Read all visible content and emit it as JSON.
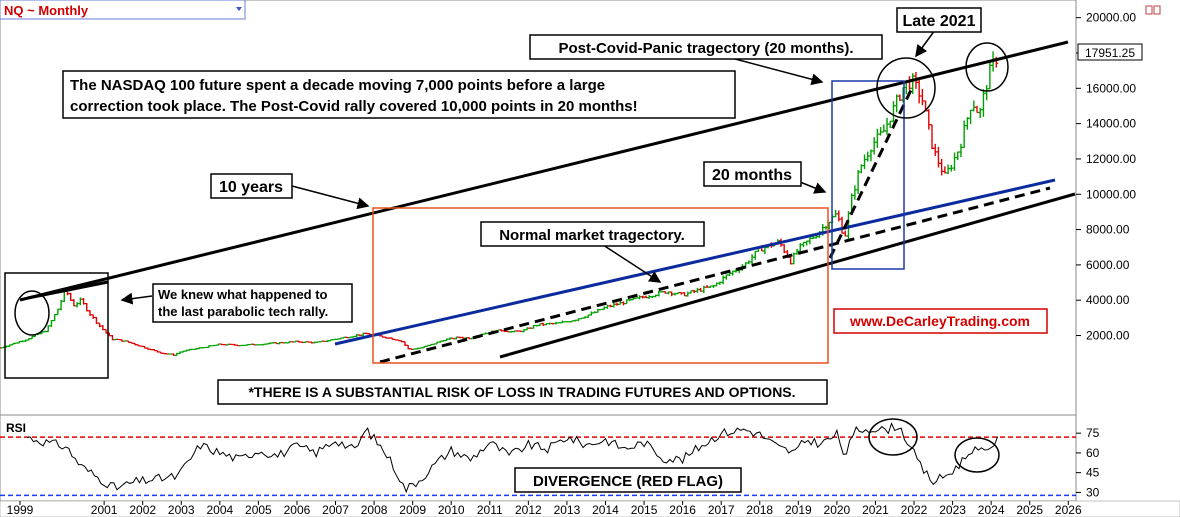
{
  "header": {
    "symbol_label": "NQ ~ Monthly"
  },
  "price_label": "17951.25",
  "rsi_label": "RSI",
  "annotations": {
    "late_2021": "Late 2021",
    "post_covid_tragectory": "Post-Covid-Panic tragectory (20 months).",
    "summary_line1": "The NASDAQ 100 future spent a decade moving 7,000 points before a large",
    "summary_line2": "correction took place. The Post-Covid rally covered 10,000 points in 20 months!",
    "ten_years": "10 years",
    "twenty_months": "20 months",
    "normal_tragectory": "Normal market tragectory.",
    "parabolic_line1": "We knew what happened to",
    "parabolic_line2": "the last parabolic tech rally.",
    "website": "www.DeCarleyTrading.com",
    "risk_disclaimer": "*THERE IS A SUBSTANTIAL RISK OF LOSS IN TRADING FUTURES AND OPTIONS.",
    "divergence": "DIVERGENCE (RED FLAG)"
  },
  "colors": {
    "up_bar": "#00a000",
    "down_bar": "#e00000",
    "channel": "#000000",
    "blue_trend": "#0a2a9e",
    "orange_box": "#e8501e",
    "blue_box": "#1a3aa8",
    "website_text": "#d40000",
    "overbought": "#e00000",
    "oversold": "#1a3aff"
  },
  "chart_data": [
    {
      "type": "line",
      "title": "NQ ~ Monthly",
      "x_unit": "year",
      "x_ticks": [
        "1999",
        "2001",
        "2002",
        "2003",
        "2004",
        "2005",
        "2006",
        "2007",
        "2008",
        "2009",
        "2010",
        "2011",
        "2012",
        "2013",
        "2014",
        "2015",
        "2016",
        "2017",
        "2018",
        "2019",
        "2020",
        "2021",
        "2022",
        "2023",
        "2024",
        "2025",
        "2026"
      ],
      "y_ticks": [
        2000,
        4000,
        6000,
        8000,
        10000,
        12000,
        14000,
        16000,
        18000,
        20000
      ],
      "y_tick_labels": [
        "2000.00",
        "4000.00",
        "6000.00",
        "8000.00",
        "10000.00",
        "12000.00",
        "14000.00",
        "16000.00",
        "18000.00",
        "20000.00"
      ],
      "ylim": [
        -2500,
        21000
      ],
      "xlim": [
        1998.3,
        2026.2
      ],
      "last_value": 17951.25,
      "series": [
        {
          "name": "NQ",
          "x": [
            1998.3,
            1999.0,
            1999.5,
            1999.8,
            2000.0,
            2000.2,
            2000.4,
            2000.6,
            2000.9,
            2001.2,
            2001.5,
            2001.8,
            2002.2,
            2002.5,
            2002.8,
            2003.0,
            2003.5,
            2004.0,
            2004.5,
            2005.0,
            2005.5,
            2006.0,
            2006.5,
            2007.0,
            2007.5,
            2007.8,
            2008.3,
            2008.7,
            2008.9,
            2009.2,
            2009.5,
            2009.8,
            2010.2,
            2010.5,
            2010.8,
            2011.3,
            2011.6,
            2011.9,
            2012.2,
            2012.5,
            2012.8,
            2013.2,
            2013.6,
            2014.0,
            2014.5,
            2015.0,
            2015.6,
            2016.0,
            2016.3,
            2016.8,
            2017.2,
            2017.6,
            2018.0,
            2018.5,
            2018.8,
            2019.0,
            2019.5,
            2019.8,
            2020.0,
            2020.2,
            2020.35,
            2020.6,
            2020.9,
            2021.2,
            2021.5,
            2021.75,
            2021.95,
            2022.2,
            2022.5,
            2022.8,
            2023.0,
            2023.2,
            2023.5,
            2023.7,
            2023.85,
            2024.0,
            2024.2
          ],
          "values": [
            1300,
            1800,
            2300,
            3500,
            4600,
            3700,
            4000,
            3300,
            2500,
            1800,
            1700,
            1500,
            1200,
            1000,
            900,
            1100,
            1300,
            1500,
            1450,
            1500,
            1580,
            1650,
            1600,
            1800,
            2000,
            2100,
            1900,
            1700,
            1200,
            1300,
            1500,
            1750,
            1900,
            1850,
            2100,
            2300,
            2200,
            2300,
            2600,
            2650,
            2700,
            2900,
            3200,
            3600,
            3900,
            4200,
            4500,
            4300,
            4500,
            4800,
            5500,
            6000,
            6900,
            7300,
            6200,
            6900,
            7800,
            8500,
            8900,
            7500,
            9500,
            11500,
            12800,
            13500,
            15000,
            16200,
            16400,
            15500,
            12500,
            11000,
            11800,
            12800,
            15300,
            14500,
            16000,
            17200,
            17951
          ]
        }
      ]
    },
    {
      "type": "line",
      "title": "RSI",
      "y_ticks": [
        30,
        45,
        60,
        75
      ],
      "ylim": [
        25,
        85
      ],
      "series": [
        {
          "name": "RSI",
          "x": [
            1999.0,
            1999.5,
            2000.0,
            2000.4,
            2000.8,
            2001.3,
            2001.8,
            2002.3,
            2002.9,
            2003.5,
            2004.0,
            2004.5,
            2005.0,
            2005.5,
            2006.0,
            2006.5,
            2007.0,
            2007.5,
            2007.8,
            2008.3,
            2008.6,
            2008.8,
            2009.2,
            2009.6,
            2010.0,
            2010.5,
            2011.0,
            2011.5,
            2012.0,
            2012.5,
            2013.0,
            2013.5,
            2014.0,
            2014.5,
            2015.0,
            2015.5,
            2016.0,
            2016.5,
            2017.0,
            2017.6,
            2018.0,
            2018.5,
            2018.9,
            2019.2,
            2019.6,
            2020.0,
            2020.2,
            2020.5,
            2020.9,
            2021.2,
            2021.6,
            2021.9,
            2022.2,
            2022.5,
            2022.9,
            2023.2,
            2023.5,
            2023.8,
            2024.0,
            2024.2
          ],
          "values": [
            72,
            68,
            65,
            50,
            42,
            33,
            38,
            40,
            42,
            66,
            60,
            55,
            62,
            58,
            65,
            60,
            70,
            62,
            78,
            60,
            45,
            32,
            40,
            52,
            62,
            55,
            68,
            58,
            66,
            63,
            72,
            66,
            70,
            63,
            68,
            56,
            55,
            66,
            75,
            78,
            74,
            64,
            60,
            70,
            67,
            74,
            58,
            77,
            79,
            77,
            81,
            65,
            48,
            38,
            44,
            52,
            63,
            60,
            66,
            70
          ]
        }
      ],
      "reference_lines": [
        72,
        30
      ]
    }
  ]
}
